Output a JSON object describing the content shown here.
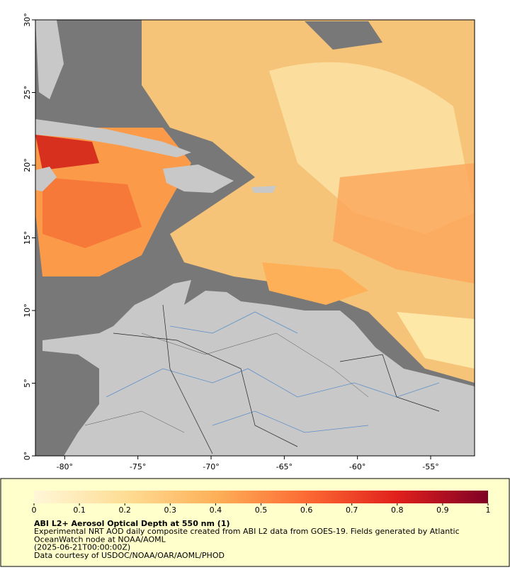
{
  "map": {
    "xlim": [
      -82,
      -52
    ],
    "ylim": [
      0,
      30
    ],
    "xticks": [
      {
        "value": -80,
        "label": "-80°"
      },
      {
        "value": -75,
        "label": "-75°"
      },
      {
        "value": -70,
        "label": "-70°"
      },
      {
        "value": -65,
        "label": "-65°"
      },
      {
        "value": -60,
        "label": "-60°"
      },
      {
        "value": -55,
        "label": "-55°"
      }
    ],
    "yticks": [
      {
        "value": 0,
        "label": "0°"
      },
      {
        "value": 5,
        "label": "5°"
      },
      {
        "value": 10,
        "label": "10°"
      },
      {
        "value": 15,
        "label": "15°"
      },
      {
        "value": 20,
        "label": "20°"
      },
      {
        "value": 25,
        "label": "25°"
      },
      {
        "value": 30,
        "label": "30°"
      }
    ]
  },
  "colorbar": {
    "ticks": [
      0,
      0.1,
      0.2,
      0.3,
      0.4,
      0.5,
      0.6,
      0.7,
      0.8,
      0.9,
      1
    ]
  },
  "caption": {
    "title": "ABI L2+ Aerosol Optical Depth at 550 nm (1)",
    "lines": [
      "Experimental NRT AOD daily composite created from ABI L2 data from GOES-19. Fields generated by Atlantic",
      "OceanWatch node at NOAA/AOML",
      "(2025-06-21T00:00:00Z)",
      "Data courtesy of USDOC/NOAA/OAR/AOML/PHOD"
    ]
  }
}
